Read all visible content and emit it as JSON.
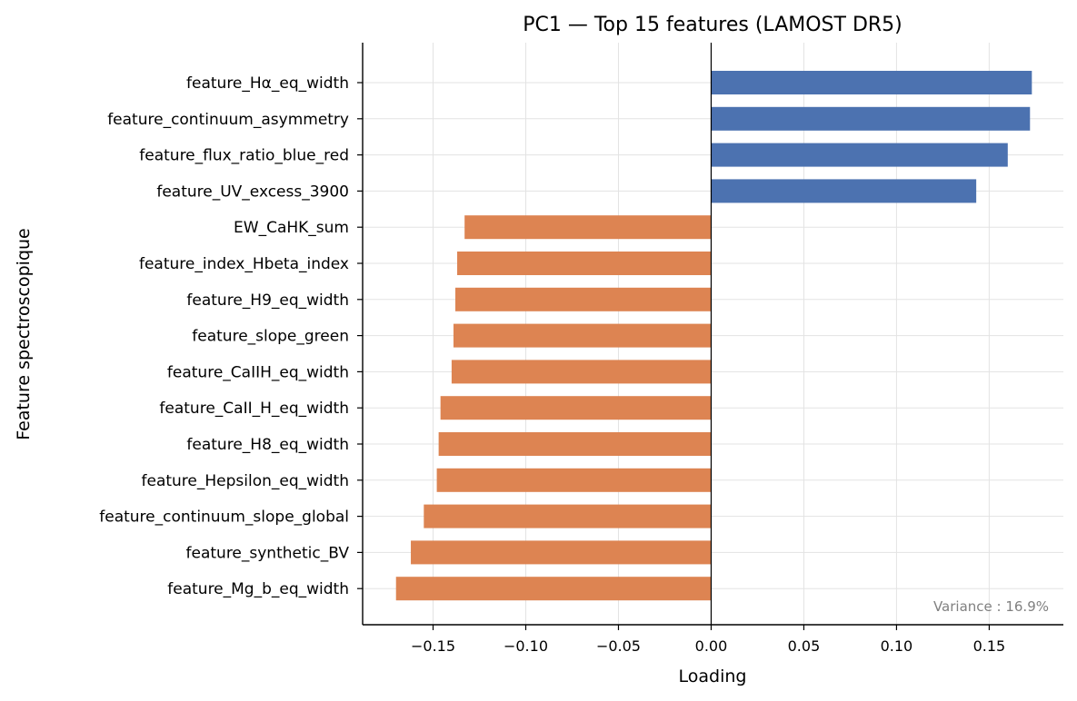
{
  "chart_data": {
    "type": "bar",
    "orientation": "horizontal",
    "title": "PC1 — Top 15 features (LAMOST DR5)",
    "xlabel": "Loading",
    "ylabel": "Feature spectroscopique",
    "xlim": [
      -0.188,
      0.19
    ],
    "xticks": [
      -0.15,
      -0.1,
      -0.05,
      0.0,
      0.05,
      0.1,
      0.15
    ],
    "xtick_labels": [
      "−0.15",
      "−0.10",
      "−0.05",
      "0.00",
      "0.05",
      "0.10",
      "0.15"
    ],
    "grid": true,
    "categories": [
      "feature_Hα_eq_width",
      "feature_continuum_asymmetry",
      "feature_flux_ratio_blue_red",
      "feature_UV_excess_3900",
      "EW_CaHK_sum",
      "feature_index_Hbeta_index",
      "feature_H9_eq_width",
      "feature_slope_green",
      "feature_CaIIH_eq_width",
      "feature_CaII_H_eq_width",
      "feature_H8_eq_width",
      "feature_Hepsilon_eq_width",
      "feature_continuum_slope_global",
      "feature_synthetic_BV",
      "feature_Mg_b_eq_width"
    ],
    "values": [
      0.173,
      0.172,
      0.16,
      0.143,
      -0.133,
      -0.137,
      -0.138,
      -0.139,
      -0.14,
      -0.146,
      -0.147,
      -0.148,
      -0.155,
      -0.162,
      -0.17
    ],
    "colors": {
      "positive": "#4c72b0",
      "negative": "#dd8452"
    },
    "annotation": "Variance : 16.9%"
  }
}
